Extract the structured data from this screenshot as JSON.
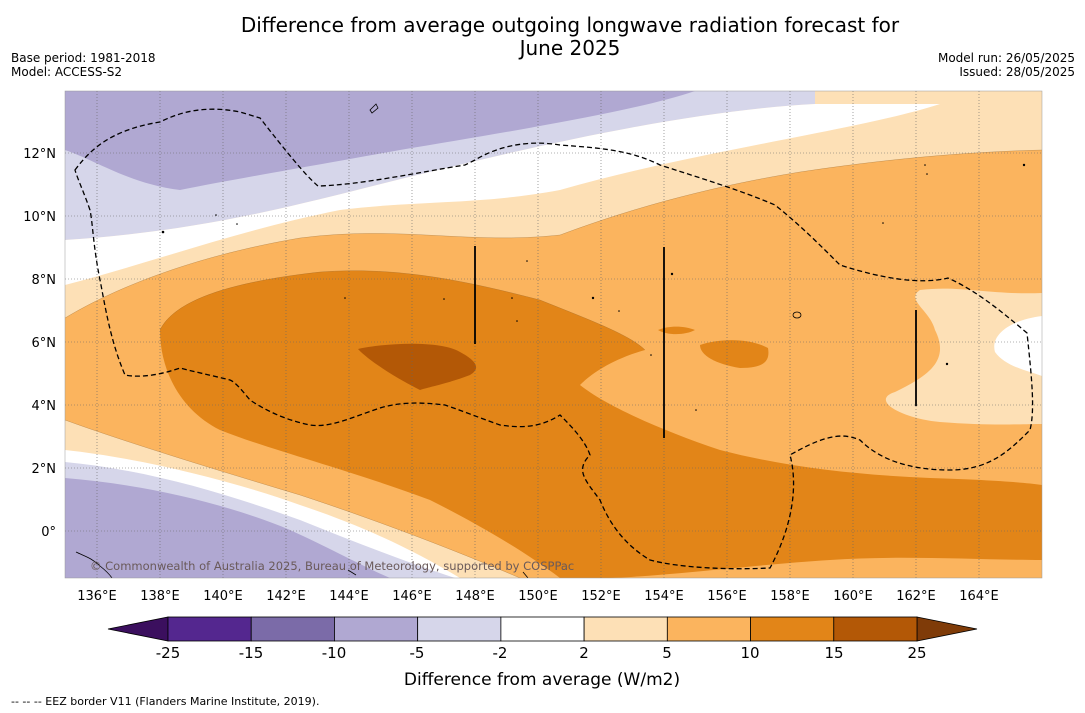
{
  "header": {
    "title_line1": "Difference from average outgoing longwave radiation forecast for",
    "title_line2": "June 2025",
    "base_period": "Base period: 1981-2018",
    "model": "Model: ACCESS-S2",
    "model_run": "Model run: 26/05/2025",
    "issued": "Issued: 28/05/2025"
  },
  "map": {
    "lon_ticks": [
      "136°E",
      "138°E",
      "140°E",
      "142°E",
      "144°E",
      "146°E",
      "148°E",
      "150°E",
      "152°E",
      "154°E",
      "156°E",
      "158°E",
      "160°E",
      "162°E",
      "164°E"
    ],
    "lat_ticks": [
      "12°N",
      "10°N",
      "8°N",
      "6°N",
      "4°N",
      "2°N",
      "0°"
    ],
    "copyright": "© Commonwealth of Australia 2025, Bureau of Meteorology, supported by COSPPac"
  },
  "colorbar": {
    "title": "Difference from average (W/m2)",
    "labels": [
      "-25",
      "-15",
      "-10",
      "-5",
      "-2",
      "2",
      "5",
      "10",
      "15",
      "25"
    ],
    "colors": [
      "#54278f",
      "#7b6ba8",
      "#b0a8d2",
      "#d6d6ea",
      "#ffffff",
      "#fde0b6",
      "#fbb45e",
      "#e28518",
      "#b35806"
    ],
    "under_color": "#3b0f5e",
    "over_color": "#7f3b08"
  },
  "footnote": "--  --  -- EEZ border V11 (Flanders Marine Institute, 2019)."
}
